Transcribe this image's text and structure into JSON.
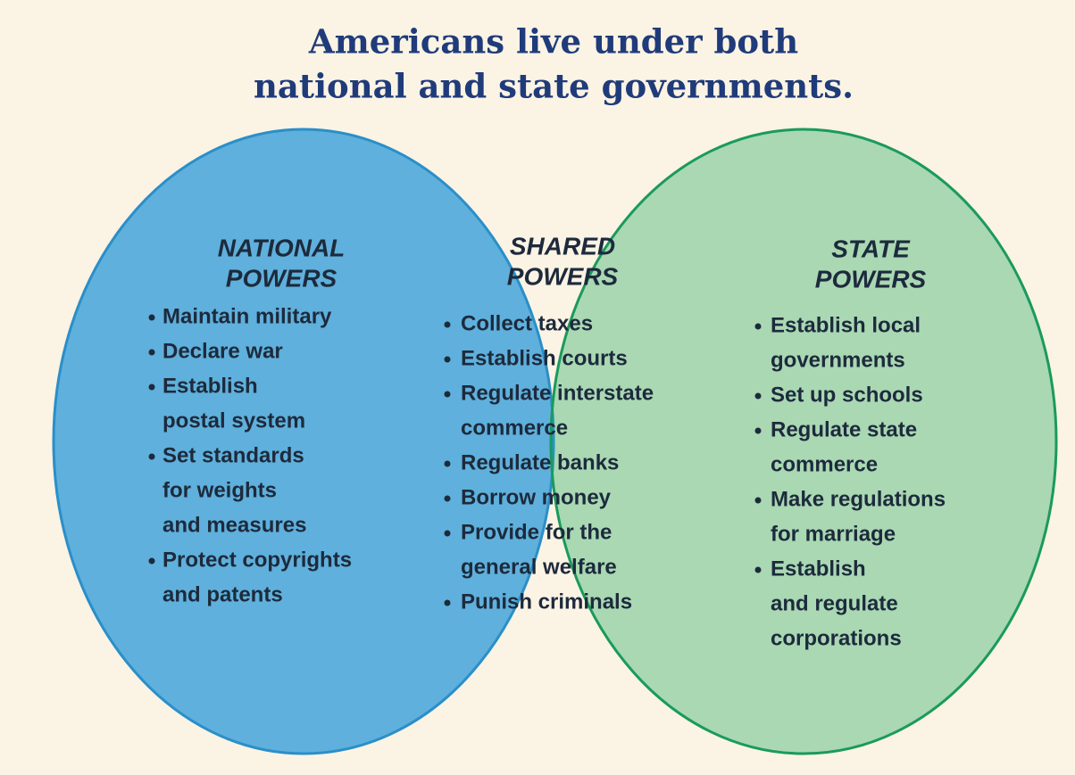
{
  "title": [
    "Americans live under both",
    "national and state governments."
  ],
  "sets": [
    {
      "heading": [
        "NATIONAL",
        "POWERS"
      ],
      "items": [
        [
          "Maintain military"
        ],
        [
          "Declare war"
        ],
        [
          "Establish",
          "postal system"
        ],
        [
          "Set standards",
          "for weights",
          "and measures"
        ],
        [
          "Protect copyrights",
          "and patents"
        ]
      ]
    },
    {
      "heading": [
        "SHARED",
        "POWERS"
      ],
      "items": [
        [
          "Collect taxes"
        ],
        [
          "Establish courts"
        ],
        [
          "Regulate interstate",
          "commerce"
        ],
        [
          "Regulate banks"
        ],
        [
          "Borrow money"
        ],
        [
          "Provide for the",
          "general welfare"
        ],
        [
          "Punish criminals"
        ]
      ]
    },
    {
      "heading": [
        "STATE",
        "POWERS"
      ],
      "items": [
        [
          "Establish local",
          "governments"
        ],
        [
          "Set up schools"
        ],
        [
          "Regulate state",
          "commerce"
        ],
        [
          "Make regulations",
          "for marriage"
        ],
        [
          "Establish",
          "and regulate",
          "corporations"
        ]
      ]
    }
  ]
}
